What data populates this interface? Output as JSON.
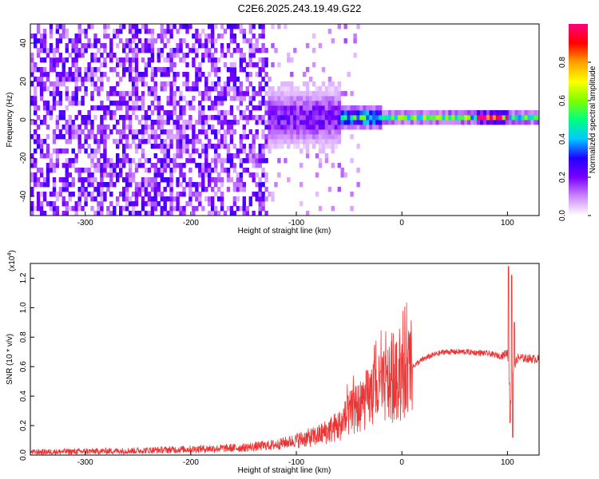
{
  "figure": {
    "title": "C2E6.2025.243.19.49.G22"
  },
  "chart_data": [
    {
      "type": "heatmap",
      "title": "C2E6.2025.243.19.49.G22",
      "xlabel": "Height of straight line (km)",
      "ylabel": "Frequency (Hz)",
      "xlim": [
        -352,
        130
      ],
      "ylim": [
        -50,
        50
      ],
      "xticks": [
        -300,
        -200,
        -100,
        0,
        100
      ],
      "yticks": [
        -40,
        -20,
        0,
        20,
        40
      ],
      "colorbar": {
        "label": "Normalized spectral amplitude",
        "range": [
          0,
          1
        ],
        "ticks": [
          "0.0",
          "0.2",
          "0.4",
          "0.6",
          "0.8"
        ],
        "colormap": [
          "#ffffff",
          "#cc88ff",
          "#7a00ff",
          "#2000ff",
          "#00c8ff",
          "#00ff80",
          "#80ff00",
          "#ffff00",
          "#ffa000",
          "#ff0000",
          "#ff0080"
        ]
      },
      "noise_region_x": [
        -352,
        -128
      ],
      "signal_ridge": {
        "center_hz": 0,
        "segments": [
          {
            "x": [
              -130,
              -60
            ],
            "amplitude": 0.22,
            "spread_hz": 8
          },
          {
            "x": [
              -60,
              -20
            ],
            "amplitude": 0.5,
            "spread_hz": 3
          },
          {
            "x": [
              -20,
              70
            ],
            "amplitude": 0.55,
            "spread_hz": 1.5
          },
          {
            "x": [
              70,
              100
            ],
            "amplitude": 0.95,
            "spread_hz": 1.5
          },
          {
            "x": [
              100,
              130
            ],
            "amplitude": 0.55,
            "spread_hz": 1.5
          }
        ]
      }
    },
    {
      "type": "line",
      "xlabel": "Height of straight line (km)",
      "ylabel": "SNR (10 * v/v)",
      "scale_label": "(x10",
      "scale_exponent": "4",
      "xlim": [
        -352,
        130
      ],
      "ylim": [
        0,
        1.3
      ],
      "xticks": [
        -300,
        -200,
        -100,
        0,
        100
      ],
      "yticks": [
        "0.0",
        "0.2",
        "0.4",
        "0.6",
        "0.8",
        "1.0",
        "1.2"
      ],
      "line_color": "#ee3333",
      "envelope": {
        "x": [
          -352,
          -250,
          -200,
          -150,
          -120,
          -100,
          -80,
          -60,
          -50,
          -40,
          -30,
          -20,
          -10,
          0,
          10,
          20,
          30,
          40,
          60,
          80,
          95,
          100,
          103,
          106,
          110,
          130
        ],
        "y": [
          0.02,
          0.03,
          0.04,
          0.05,
          0.07,
          0.1,
          0.13,
          0.2,
          0.27,
          0.33,
          0.4,
          0.45,
          0.48,
          0.52,
          0.6,
          0.65,
          0.68,
          0.7,
          0.7,
          0.69,
          0.67,
          0.7,
          0.35,
          0.6,
          0.66,
          0.65
        ]
      },
      "spikes": [
        {
          "x": 101,
          "y": 1.28
        },
        {
          "x": 102.5,
          "y": 0.22
        },
        {
          "x": 104,
          "y": 1.22
        },
        {
          "x": 105,
          "y": 0.12
        },
        {
          "x": 106.5,
          "y": 0.9
        }
      ]
    }
  ]
}
